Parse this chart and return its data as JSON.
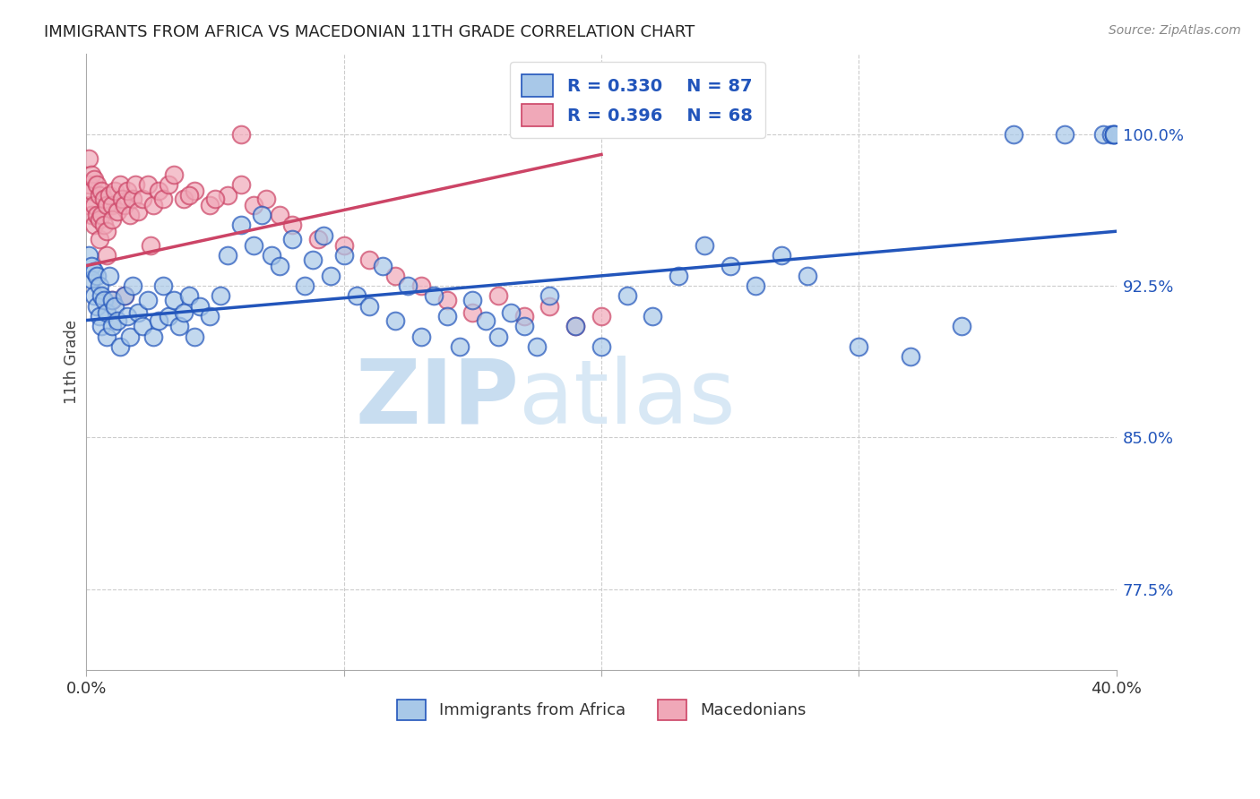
{
  "title": "IMMIGRANTS FROM AFRICA VS MACEDONIAN 11TH GRADE CORRELATION CHART",
  "source": "Source: ZipAtlas.com",
  "ylabel": "11th Grade",
  "yticks": [
    0.775,
    0.85,
    0.925,
    1.0
  ],
  "ytick_labels": [
    "77.5%",
    "85.0%",
    "92.5%",
    "100.0%"
  ],
  "xlim": [
    0.0,
    0.4
  ],
  "ylim": [
    0.735,
    1.04
  ],
  "blue_R": 0.33,
  "blue_N": 87,
  "pink_R": 0.396,
  "pink_N": 68,
  "blue_color": "#a8c8e8",
  "pink_color": "#f0a8b8",
  "blue_line_color": "#2255bb",
  "pink_line_color": "#cc4466",
  "legend_label_blue": "Immigrants from Africa",
  "legend_label_pink": "Macedonians",
  "blue_scatter_x": [
    0.001,
    0.002,
    0.002,
    0.003,
    0.003,
    0.004,
    0.004,
    0.005,
    0.005,
    0.006,
    0.006,
    0.007,
    0.008,
    0.008,
    0.009,
    0.01,
    0.01,
    0.011,
    0.012,
    0.013,
    0.015,
    0.016,
    0.017,
    0.018,
    0.02,
    0.022,
    0.024,
    0.026,
    0.028,
    0.03,
    0.032,
    0.034,
    0.036,
    0.038,
    0.04,
    0.042,
    0.044,
    0.048,
    0.052,
    0.055,
    0.06,
    0.065,
    0.068,
    0.072,
    0.075,
    0.08,
    0.085,
    0.088,
    0.092,
    0.095,
    0.1,
    0.105,
    0.11,
    0.115,
    0.12,
    0.125,
    0.13,
    0.135,
    0.14,
    0.145,
    0.15,
    0.155,
    0.16,
    0.165,
    0.17,
    0.175,
    0.18,
    0.19,
    0.2,
    0.21,
    0.22,
    0.23,
    0.24,
    0.25,
    0.26,
    0.27,
    0.28,
    0.3,
    0.32,
    0.34,
    0.36,
    0.38,
    0.395,
    0.398,
    0.399,
    0.399,
    0.399
  ],
  "blue_scatter_y": [
    0.94,
    0.935,
    0.928,
    0.932,
    0.92,
    0.93,
    0.915,
    0.925,
    0.91,
    0.92,
    0.905,
    0.918,
    0.912,
    0.9,
    0.93,
    0.918,
    0.905,
    0.915,
    0.908,
    0.895,
    0.92,
    0.91,
    0.9,
    0.925,
    0.912,
    0.905,
    0.918,
    0.9,
    0.908,
    0.925,
    0.91,
    0.918,
    0.905,
    0.912,
    0.92,
    0.9,
    0.915,
    0.91,
    0.92,
    0.94,
    0.955,
    0.945,
    0.96,
    0.94,
    0.935,
    0.948,
    0.925,
    0.938,
    0.95,
    0.93,
    0.94,
    0.92,
    0.915,
    0.935,
    0.908,
    0.925,
    0.9,
    0.92,
    0.91,
    0.895,
    0.918,
    0.908,
    0.9,
    0.912,
    0.905,
    0.895,
    0.92,
    0.905,
    0.895,
    0.92,
    0.91,
    0.93,
    0.945,
    0.935,
    0.925,
    0.94,
    0.93,
    0.895,
    0.89,
    0.905,
    1.0,
    1.0,
    1.0,
    1.0,
    1.0,
    1.0,
    1.0
  ],
  "pink_scatter_x": [
    0.001,
    0.001,
    0.001,
    0.002,
    0.002,
    0.002,
    0.003,
    0.003,
    0.003,
    0.004,
    0.004,
    0.005,
    0.005,
    0.005,
    0.006,
    0.006,
    0.007,
    0.007,
    0.008,
    0.008,
    0.009,
    0.01,
    0.01,
    0.011,
    0.012,
    0.013,
    0.014,
    0.015,
    0.016,
    0.017,
    0.018,
    0.019,
    0.02,
    0.022,
    0.024,
    0.026,
    0.028,
    0.03,
    0.032,
    0.034,
    0.038,
    0.042,
    0.048,
    0.055,
    0.06,
    0.065,
    0.07,
    0.075,
    0.08,
    0.09,
    0.1,
    0.11,
    0.12,
    0.13,
    0.14,
    0.15,
    0.16,
    0.17,
    0.18,
    0.04,
    0.025,
    0.015,
    0.01,
    0.008,
    0.05,
    0.06,
    0.19,
    0.2
  ],
  "pink_scatter_y": [
    0.988,
    0.975,
    0.965,
    0.98,
    0.972,
    0.96,
    0.978,
    0.965,
    0.955,
    0.975,
    0.96,
    0.97,
    0.958,
    0.948,
    0.972,
    0.96,
    0.968,
    0.955,
    0.965,
    0.952,
    0.97,
    0.965,
    0.958,
    0.972,
    0.962,
    0.975,
    0.968,
    0.965,
    0.972,
    0.96,
    0.968,
    0.975,
    0.962,
    0.968,
    0.975,
    0.965,
    0.972,
    0.968,
    0.975,
    0.98,
    0.968,
    0.972,
    0.965,
    0.97,
    0.975,
    0.965,
    0.968,
    0.96,
    0.955,
    0.948,
    0.945,
    0.938,
    0.93,
    0.925,
    0.918,
    0.912,
    0.92,
    0.91,
    0.915,
    0.97,
    0.945,
    0.92,
    0.918,
    0.94,
    0.968,
    1.0,
    0.905,
    0.91
  ],
  "blue_trend_x": [
    0.0,
    0.4
  ],
  "blue_trend_y": [
    0.908,
    0.952
  ],
  "pink_trend_x": [
    0.0,
    0.2
  ],
  "pink_trend_y": [
    0.935,
    0.99
  ]
}
